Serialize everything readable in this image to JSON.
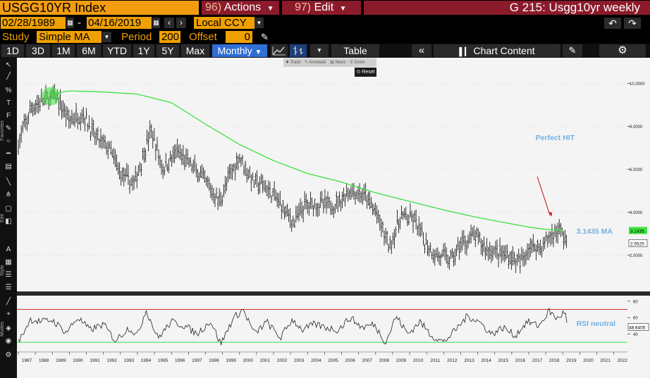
{
  "header": {
    "ticker": "USGG10YR Index",
    "actions_num": "96)",
    "actions_label": "Actions",
    "edit_num": "97)",
    "edit_label": "Edit",
    "title": "G 215: Usgg10yr weekly"
  },
  "range": {
    "start": "02/28/1989",
    "dash": "-",
    "end": "04/16/2019",
    "currency": "Local CCY"
  },
  "study": {
    "study_label": "Study",
    "study_value": "Simple MA",
    "period_label": "Period",
    "period_value": "200",
    "offset_label": "Offset",
    "offset_value": "0"
  },
  "toolbar": {
    "periods": [
      "1D",
      "3D",
      "1M",
      "6M",
      "YTD",
      "1Y",
      "5Y",
      "Max"
    ],
    "frequency": "Monthly",
    "table_label": "Table",
    "chart_content_label": "Chart Content",
    "mini_tools": [
      "Track",
      "Annotate",
      "News",
      "Zoom"
    ],
    "reset_label": "Reset"
  },
  "left_bar": {
    "favorites_label": "Favorites",
    "edit_label": "Edit",
    "style_label": "Style",
    "modes_label": "Modes"
  },
  "colors": {
    "ma_line": "#3ce23c",
    "price": "#000000",
    "annotation_blue": "#6fb2e8",
    "arrow": "#d03030",
    "rsi_upper": "#d03030",
    "rsi_lower": "#3ce23c"
  },
  "annotations": {
    "perfect_hit": "Perfect HIT",
    "ma_value_label": "3.1435 MA",
    "rsi_neutral": "RSI neutral"
  },
  "chart_data": [
    {
      "type": "line",
      "series": [
        {
          "name": "USGG10YR Index",
          "x": [
            1987,
            1987.8,
            1988.5,
            1989.2,
            1990,
            1990.8,
            1991.5,
            1992.3,
            1993,
            1993.8,
            1994.8,
            1995.5,
            1996.3,
            1997,
            1997.8,
            1998.8,
            1999.5,
            2000,
            2000.8,
            2001.5,
            2002.3,
            2003.2,
            2003.8,
            2004.5,
            2005.5,
            2006.5,
            2007.4,
            2008,
            2008.8,
            2009.5,
            2010.3,
            2010.8,
            2011.5,
            2012.5,
            2013,
            2013.8,
            2014.5,
            2015.3,
            2016,
            2016.5,
            2017,
            2017.8,
            2018.3,
            2018.8,
            2019.3
          ],
          "values": [
            7.2,
            8.9,
            9.2,
            9.4,
            8.3,
            8.6,
            7.5,
            7.0,
            5.8,
            5.3,
            7.8,
            6.0,
            6.8,
            6.3,
            5.6,
            4.5,
            5.8,
            6.6,
            5.4,
            5.2,
            4.5,
            3.5,
            4.3,
            4.4,
            4.3,
            5.0,
            4.7,
            4.0,
            2.4,
            3.8,
            3.6,
            2.7,
            2.0,
            1.8,
            2.5,
            2.9,
            2.3,
            2.1,
            1.9,
            1.6,
            2.4,
            2.4,
            2.9,
            3.2,
            2.55
          ]
        },
        {
          "name": "Simple MA 200",
          "x": [
            1988.8,
            1990,
            1992,
            1994,
            1996,
            1998,
            2000,
            2002,
            2004,
            2006,
            2008,
            2010,
            2012,
            2014,
            2016,
            2017,
            2018,
            2019
          ],
          "values": [
            9.5,
            9.65,
            9.6,
            9.5,
            9.1,
            8.1,
            7.15,
            6.4,
            5.8,
            5.4,
            4.9,
            4.5,
            4.1,
            3.75,
            3.45,
            3.3,
            3.2,
            3.1435
          ]
        }
      ],
      "ylim": [
        0.5,
        11.0
      ],
      "y_ticks": [
        "10.0000",
        "8.0000",
        "6.0000",
        "4.0000",
        "2.0000"
      ],
      "x_ticks": [
        "1987",
        "1988",
        "1989",
        "1990",
        "1991",
        "1992",
        "1993",
        "1994",
        "1995",
        "1996",
        "1997",
        "1998",
        "1999",
        "2000",
        "2001",
        "2002",
        "2003",
        "2004",
        "2005",
        "2006",
        "2007",
        "2008",
        "2009",
        "2010",
        "2011",
        "2012",
        "2013",
        "2014",
        "2015",
        "2016",
        "2017",
        "2018",
        "2019",
        "2020",
        "2021",
        "2022"
      ],
      "last_labels": [
        "3.1435",
        "2.5525"
      ]
    },
    {
      "type": "line",
      "series": [
        {
          "name": "RSI",
          "x": [
            1987,
            1987.7,
            1988.3,
            1989,
            1989.8,
            1990.5,
            1991.2,
            1992,
            1992.7,
            1993.5,
            1994,
            1994.5,
            1995.2,
            1996,
            1996.8,
            1997.5,
            1998.3,
            1998.9,
            1999.6,
            2000.2,
            2000.9,
            2001.6,
            2002.4,
            2003.1,
            2003.7,
            2004.4,
            2005.1,
            2005.8,
            2006.5,
            2007.2,
            2007.9,
            2008.6,
            2009.2,
            2009.9,
            2010.6,
            2011.3,
            2012,
            2012.7,
            2013.4,
            2014.1,
            2014.8,
            2015.5,
            2016.2,
            2016.9,
            2017.6,
            2018.2,
            2018.7,
            2019.1,
            2019.3
          ],
          "values": [
            30,
            58,
            55,
            57,
            42,
            60,
            45,
            52,
            32,
            48,
            38,
            70,
            35,
            55,
            50,
            40,
            56,
            28,
            58,
            70,
            40,
            55,
            35,
            58,
            45,
            52,
            48,
            45,
            60,
            48,
            52,
            30,
            62,
            40,
            55,
            38,
            30,
            45,
            62,
            55,
            40,
            48,
            38,
            55,
            50,
            68,
            58,
            68,
            48.64
          ]
        }
      ],
      "ylim": [
        20,
        85
      ],
      "y_ticks": [
        "80",
        "60",
        "40"
      ],
      "upper_line": 70,
      "lower_line": 30,
      "last_label": "48.6405"
    }
  ]
}
